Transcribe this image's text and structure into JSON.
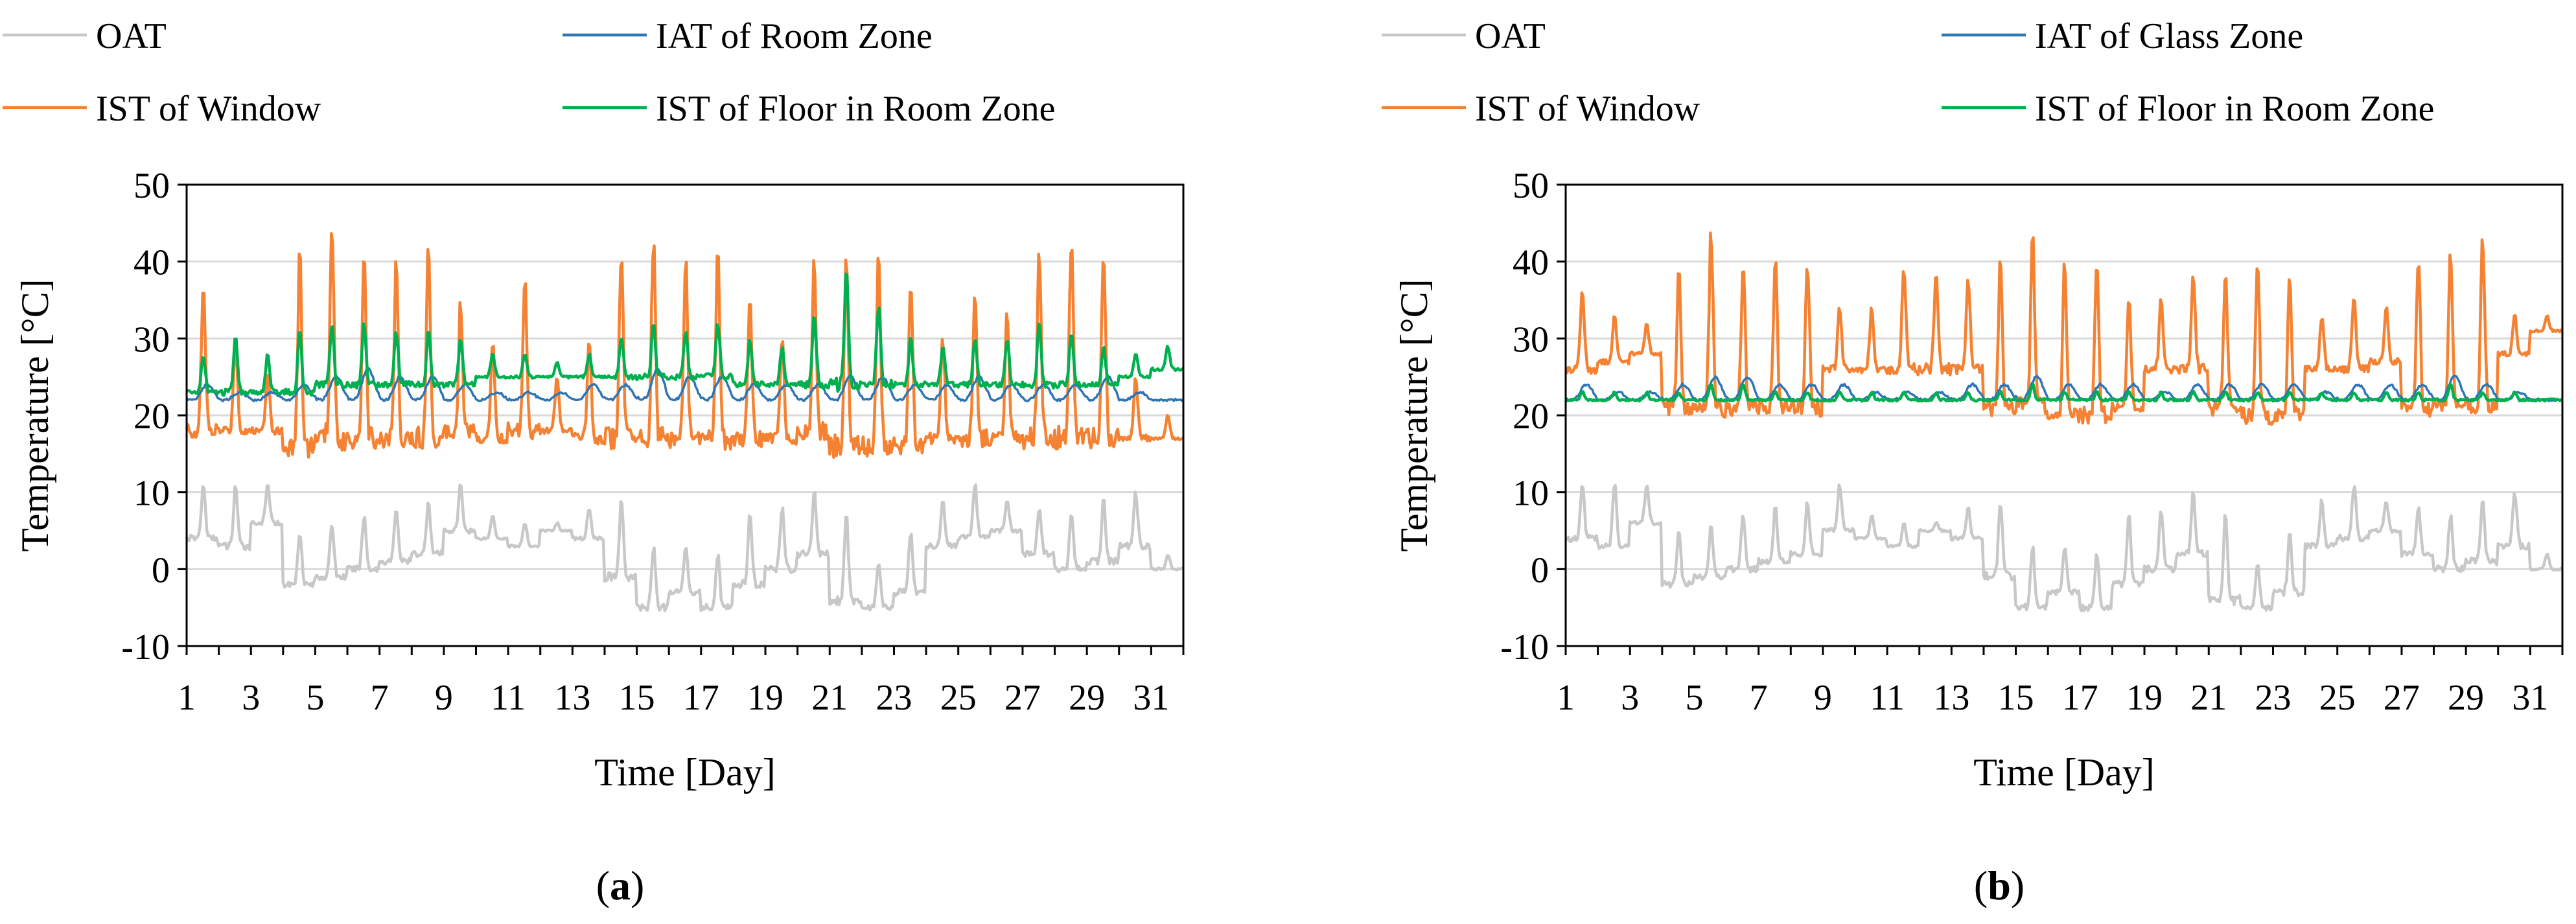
{
  "colors": {
    "oat": "#c8c8c8",
    "iat": "#2e75b6",
    "ist_window": "#f58233",
    "ist_floor": "#00b050",
    "grid": "#d9d9d9",
    "axis": "#000000"
  },
  "chart_data": [
    {
      "type": "line",
      "panel_label": "a",
      "xlabel": "Time [Day]",
      "ylabel": "Temperature [°C]",
      "xlim": [
        1,
        32
      ],
      "ylim": [
        -10,
        50
      ],
      "xticks": [
        1,
        3,
        5,
        7,
        9,
        11,
        13,
        15,
        17,
        19,
        21,
        23,
        25,
        27,
        29,
        31
      ],
      "yticks": [
        -10,
        0,
        10,
        20,
        30,
        40,
        50
      ],
      "grid": true,
      "legend_position": "top",
      "series": [
        {
          "name": "OAT",
          "key": "oat",
          "daily_min": [
            4,
            3,
            6,
            -2,
            -1,
            0,
            1,
            2,
            5,
            4,
            3,
            5,
            4,
            -1,
            -5,
            -3,
            -5,
            -2,
            0,
            2,
            -4,
            -5,
            -3,
            3,
            4,
            5,
            2,
            0,
            1,
            3,
            0
          ],
          "daily_max": [
            11,
            11,
            11,
            5,
            6,
            7,
            8,
            9,
            11,
            7,
            6,
            6,
            8,
            9,
            3,
            3,
            2,
            7,
            8,
            10,
            7,
            1,
            5,
            9,
            11,
            9,
            8,
            7,
            9,
            10,
            2
          ]
        },
        {
          "name": "IAT of Room Zone",
          "key": "iat",
          "daily_min": [
            22,
            22,
            22,
            22,
            22,
            22,
            22,
            22,
            22,
            22,
            22,
            22,
            22,
            22,
            22,
            22,
            22,
            22,
            22,
            22,
            22,
            22,
            22,
            22,
            22,
            22,
            22,
            22,
            22,
            22,
            22
          ],
          "daily_max": [
            24,
            23,
            23,
            24,
            25,
            26,
            25,
            25,
            24,
            23,
            23,
            23,
            24,
            24,
            26,
            25,
            25,
            24,
            24,
            24,
            25,
            25,
            24,
            24,
            25,
            24,
            24,
            24,
            25,
            23,
            22
          ]
        },
        {
          "name": "IST of Window",
          "key": "ist_window",
          "daily_min": [
            18,
            18,
            18,
            16,
            17,
            17,
            17,
            17,
            18,
            17,
            18,
            18,
            17,
            17,
            17,
            17,
            17,
            17,
            17,
            18,
            16,
            16,
            16,
            17,
            17,
            17,
            17,
            17,
            17,
            17,
            17
          ],
          "daily_max": [
            37,
            30,
            26,
            41,
            46,
            40,
            40,
            42,
            35,
            30,
            38,
            25,
            30,
            42,
            43,
            40,
            42,
            35,
            30,
            40,
            41,
            41,
            38,
            30,
            36,
            34,
            41,
            44,
            42,
            25,
            20
          ]
        },
        {
          "name": "IST of Floor in Room Zone",
          "key": "ist_floor",
          "daily_min": [
            23,
            23,
            23,
            23,
            24,
            24,
            24,
            24,
            24,
            25,
            25,
            25,
            25,
            25,
            25,
            25,
            25,
            24,
            24,
            24,
            24,
            24,
            24,
            24,
            24,
            24,
            24,
            24,
            24,
            25,
            26
          ],
          "daily_max": [
            28,
            30,
            28,
            31,
            32,
            32,
            31,
            31,
            30,
            28,
            28,
            27,
            28,
            30,
            32,
            31,
            32,
            30,
            29,
            33,
            39,
            34,
            30,
            29,
            30,
            30,
            32,
            31,
            29,
            28,
            29
          ]
        }
      ]
    },
    {
      "type": "line",
      "panel_label": "b",
      "xlabel": "Time [Day]",
      "ylabel": "Temperature [°C]",
      "xlim": [
        1,
        32
      ],
      "ylim": [
        -10,
        50
      ],
      "xticks": [
        1,
        3,
        5,
        7,
        9,
        11,
        13,
        15,
        17,
        19,
        21,
        23,
        25,
        27,
        29,
        31
      ],
      "yticks": [
        -10,
        0,
        10,
        20,
        30,
        40,
        50
      ],
      "grid": true,
      "legend_position": "top",
      "series": [
        {
          "name": "OAT",
          "key": "oat",
          "daily_min": [
            4,
            3,
            6,
            -2,
            -1,
            0,
            1,
            2,
            5,
            4,
            3,
            5,
            4,
            -1,
            -5,
            -3,
            -5,
            -2,
            0,
            2,
            -4,
            -5,
            -3,
            3,
            4,
            5,
            2,
            0,
            1,
            3,
            0
          ],
          "daily_max": [
            11,
            11,
            11,
            5,
            6,
            7,
            8,
            9,
            11,
            7,
            6,
            6,
            8,
            9,
            3,
            3,
            2,
            7,
            8,
            10,
            7,
            1,
            5,
            9,
            11,
            9,
            8,
            7,
            9,
            10,
            2
          ]
        },
        {
          "name": "IAT of Glass Zone",
          "key": "iat",
          "daily_min": [
            22,
            22,
            22,
            22,
            22,
            22,
            22,
            22,
            22,
            22,
            22,
            22,
            22,
            22,
            22,
            22,
            22,
            22,
            22,
            22,
            22,
            22,
            22,
            22,
            22,
            22,
            22,
            22,
            22,
            22,
            22
          ],
          "daily_max": [
            24,
            23,
            23,
            24,
            25,
            25,
            24,
            24,
            24,
            23,
            23,
            23,
            24,
            24,
            25,
            24,
            24,
            24,
            23,
            24,
            24,
            24,
            24,
            23,
            24,
            24,
            24,
            25,
            24,
            23,
            22
          ]
        },
        {
          "name": "IST of Window",
          "key": "ist_window",
          "daily_min": [
            26,
            27,
            28,
            21,
            21,
            21,
            21,
            21,
            26,
            26,
            26,
            26,
            26,
            21,
            21,
            20,
            20,
            21,
            26,
            26,
            21,
            20,
            20,
            26,
            26,
            27,
            21,
            21,
            21,
            28,
            31
          ],
          "daily_max": [
            36,
            33,
            32,
            39,
            44,
            40,
            40,
            40,
            34,
            34,
            39,
            39,
            38,
            40,
            45,
            40,
            40,
            35,
            35,
            38,
            39,
            40,
            38,
            33,
            35,
            34,
            41,
            41,
            43,
            33,
            33
          ]
        },
        {
          "name": "IST of Floor in Room Zone",
          "key": "ist_floor",
          "daily_min": [
            22,
            22,
            22,
            22,
            22,
            22,
            22,
            22,
            22,
            22,
            22,
            22,
            22,
            22,
            22,
            22,
            22,
            22,
            22,
            22,
            22,
            22,
            22,
            22,
            22,
            22,
            22,
            22,
            22,
            22,
            22
          ],
          "daily_max": [
            23,
            23,
            23,
            23,
            24,
            24,
            23,
            23,
            23,
            23,
            23,
            23,
            23,
            23,
            24,
            23,
            23,
            23,
            23,
            23,
            23,
            23,
            23,
            23,
            23,
            23,
            23,
            24,
            23,
            23,
            22
          ]
        }
      ]
    }
  ]
}
